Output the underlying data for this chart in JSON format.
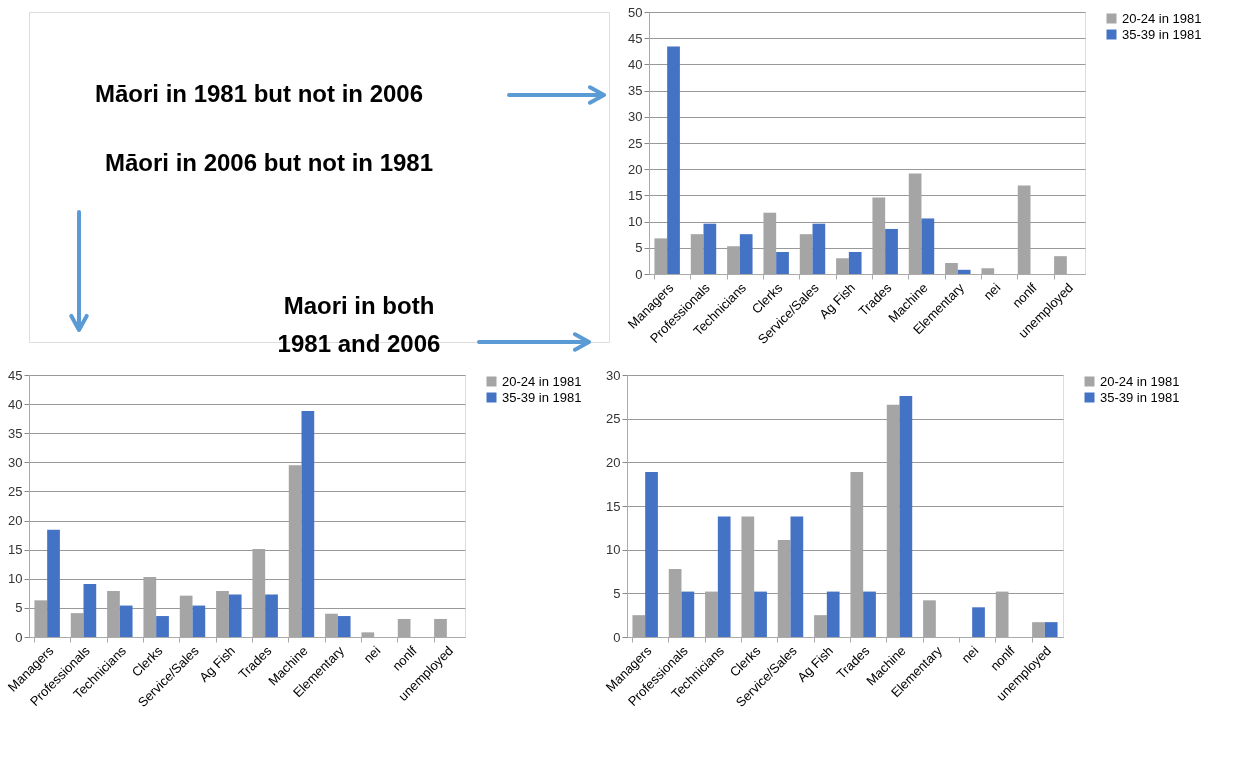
{
  "chart_data": [
    {
      "type": "other",
      "annotations": [
        "Māori in 1981 but not in 2006",
        "Māori in 2006 but not in 1981",
        "Maori in both\n1981 and 2006"
      ]
    },
    {
      "type": "bar",
      "categories": [
        "Managers",
        "Professionals",
        "Technicians",
        "Clerks",
        "Service/Sales",
        "Ag Fish",
        "Trades",
        "Machine",
        "Elementary",
        "nei",
        "nonlf",
        "unemployed"
      ],
      "series": [
        {
          "name": "20-24 in 1981",
          "color": "#a5a5a5",
          "values": [
            6.8,
            7.6,
            5.3,
            11.7,
            7.6,
            3.0,
            14.6,
            19.2,
            2.1,
            1.1,
            16.9,
            3.4
          ]
        },
        {
          "name": "35-39 in 1981",
          "color": "#4472c4",
          "values": [
            43.4,
            9.6,
            7.6,
            4.2,
            9.6,
            4.2,
            8.6,
            10.6,
            0.8,
            null,
            null,
            null
          ]
        }
      ],
      "ylim": [
        0,
        50
      ],
      "yticks": [
        0,
        5,
        10,
        15,
        20,
        25,
        30,
        35,
        40,
        45,
        50
      ],
      "grid": "y",
      "legend": "right"
    },
    {
      "type": "bar",
      "categories": [
        "Managers",
        "Professionals",
        "Technicians",
        "Clerks",
        "Service/Sales",
        "Ag Fish",
        "Trades",
        "Machine",
        "Elementary",
        "nei",
        "nonlf",
        "unemployed"
      ],
      "series": [
        {
          "name": "20-24 in 1981",
          "color": "#a5a5a5",
          "values": [
            6.3,
            4.1,
            7.9,
            10.3,
            7.1,
            7.9,
            15.1,
            29.5,
            4.0,
            0.8,
            3.1,
            3.1
          ]
        },
        {
          "name": "35-39 in 1981",
          "color": "#4472c4",
          "values": [
            18.4,
            9.1,
            5.4,
            3.6,
            5.4,
            7.3,
            7.3,
            38.8,
            3.6,
            null,
            null,
            null
          ]
        }
      ],
      "ylim": [
        0,
        45
      ],
      "yticks": [
        0,
        5,
        10,
        15,
        20,
        25,
        30,
        35,
        40,
        45
      ],
      "grid": "y",
      "legend": "right"
    },
    {
      "type": "bar",
      "categories": [
        "Managers",
        "Professionals",
        "Technicians",
        "Clerks",
        "Service/Sales",
        "Ag Fish",
        "Trades",
        "Machine",
        "Elementary",
        "nei",
        "nonlf",
        "unemployed"
      ],
      "series": [
        {
          "name": "20-24 in 1981",
          "color": "#a5a5a5",
          "values": [
            2.5,
            7.8,
            5.2,
            13.8,
            11.1,
            2.5,
            18.9,
            26.6,
            4.2,
            null,
            5.2,
            1.7
          ]
        },
        {
          "name": "35-39 in 1981",
          "color": "#4472c4",
          "values": [
            18.9,
            5.2,
            13.8,
            5.2,
            13.8,
            5.2,
            5.2,
            27.6,
            null,
            3.4,
            null,
            1.7
          ]
        }
      ],
      "ylim": [
        0,
        30
      ],
      "yticks": [
        0,
        5,
        10,
        15,
        20,
        25,
        30
      ],
      "grid": "y",
      "legend": "right"
    }
  ]
}
